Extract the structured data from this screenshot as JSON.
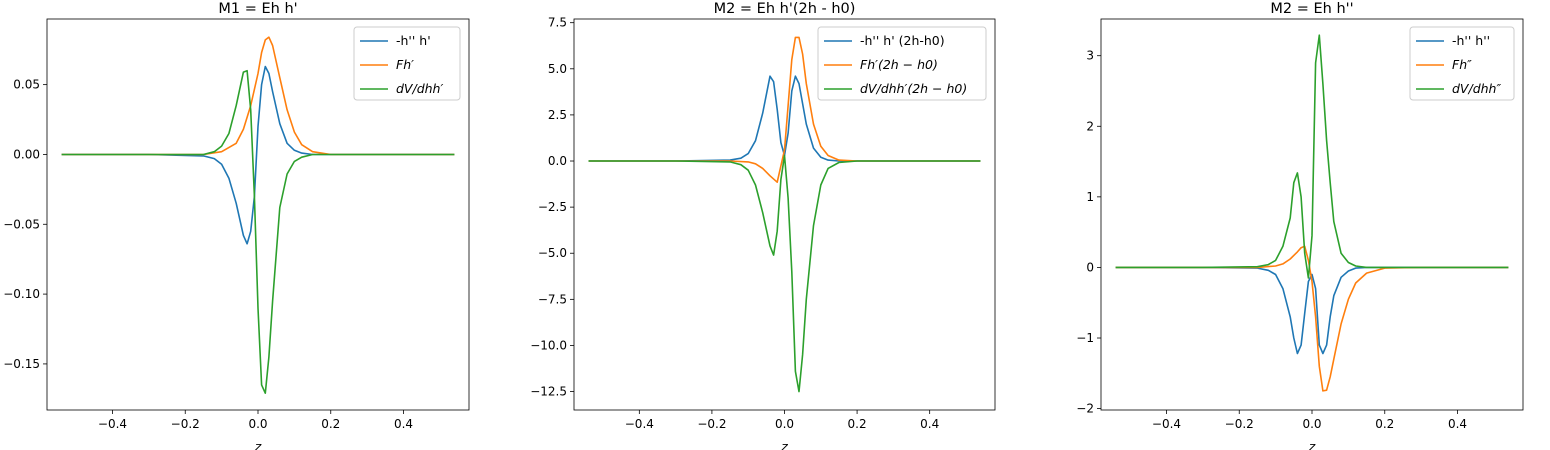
{
  "colors": {
    "series0": "#1f77b4",
    "series1": "#ff7f0e",
    "series2": "#2ca02c"
  },
  "chart_data": [
    {
      "type": "line",
      "title": "M1 = Eh h'",
      "xlabel": "z",
      "ylabel": "",
      "xlim": [
        -0.58,
        0.58
      ],
      "ylim": [
        -0.183,
        0.097
      ],
      "xticks": [
        -0.4,
        -0.2,
        0.0,
        0.2,
        0.4
      ],
      "xtick_labels": [
        "−0.4",
        "−0.2",
        "0.0",
        "0.2",
        "0.4"
      ],
      "yticks": [
        -0.15,
        -0.1,
        -0.05,
        0.0,
        0.05
      ],
      "ytick_labels": [
        "−0.15",
        "−0.10",
        "−0.05",
        "0.00",
        "0.05"
      ],
      "legend_position": "top-right",
      "series": [
        {
          "name": "-h'' h'",
          "color_key": "series0",
          "x": [
            -0.54,
            -0.3,
            -0.15,
            -0.12,
            -0.1,
            -0.08,
            -0.06,
            -0.04,
            -0.03,
            -0.02,
            -0.01,
            0.0,
            0.01,
            0.02,
            0.03,
            0.04,
            0.06,
            0.08,
            0.1,
            0.12,
            0.15,
            0.3,
            0.54
          ],
          "y": [
            0.0,
            0.0,
            -0.001,
            -0.003,
            -0.007,
            -0.017,
            -0.035,
            -0.058,
            -0.064,
            -0.055,
            -0.03,
            0.02,
            0.05,
            0.063,
            0.058,
            0.045,
            0.022,
            0.008,
            0.003,
            0.001,
            0.0,
            0.0,
            0.0
          ]
        },
        {
          "name": "Fh'",
          "color_key": "series1",
          "x": [
            -0.54,
            -0.3,
            -0.15,
            -0.1,
            -0.06,
            -0.04,
            -0.02,
            0.0,
            0.01,
            0.02,
            0.03,
            0.04,
            0.06,
            0.08,
            0.1,
            0.12,
            0.15,
            0.2,
            0.3,
            0.54
          ],
          "y": [
            0.0,
            0.0,
            0.0,
            0.002,
            0.008,
            0.018,
            0.035,
            0.058,
            0.073,
            0.082,
            0.084,
            0.078,
            0.055,
            0.032,
            0.016,
            0.007,
            0.002,
            0.0,
            0.0,
            0.0
          ]
        },
        {
          "name": "dV/dhh'",
          "color_key": "series2",
          "x": [
            -0.54,
            -0.3,
            -0.15,
            -0.12,
            -0.1,
            -0.08,
            -0.06,
            -0.04,
            -0.03,
            -0.02,
            -0.01,
            0.0,
            0.01,
            0.02,
            0.03,
            0.04,
            0.06,
            0.08,
            0.1,
            0.12,
            0.15,
            0.2,
            0.3,
            0.54
          ],
          "y": [
            0.0,
            0.0,
            0.0,
            0.002,
            0.006,
            0.015,
            0.035,
            0.059,
            0.06,
            0.032,
            -0.03,
            -0.11,
            -0.165,
            -0.171,
            -0.145,
            -0.105,
            -0.038,
            -0.014,
            -0.005,
            -0.002,
            0.0,
            0.0,
            0.0,
            0.0
          ]
        }
      ]
    },
    {
      "type": "line",
      "title": "M2 = Eh h'(2h - h0)",
      "xlabel": "z",
      "ylabel": "",
      "xlim": [
        -0.58,
        0.58
      ],
      "ylim": [
        -13.5,
        7.7
      ],
      "xticks": [
        -0.4,
        -0.2,
        0.0,
        0.2,
        0.4
      ],
      "xtick_labels": [
        "−0.4",
        "−0.2",
        "0.0",
        "0.2",
        "0.4"
      ],
      "yticks": [
        -12.5,
        -10.0,
        -7.5,
        -5.0,
        -2.5,
        0.0,
        2.5,
        5.0,
        7.5
      ],
      "ytick_labels": [
        "−12.5",
        "−10.0",
        "−7.5",
        "−5.0",
        "−2.5",
        "0.0",
        "2.5",
        "5.0",
        "7.5"
      ],
      "legend_position": "top-right",
      "series": [
        {
          "name": "-h'' h' (2h-h0)",
          "color_key": "series0",
          "x": [
            -0.54,
            -0.3,
            -0.15,
            -0.12,
            -0.1,
            -0.08,
            -0.06,
            -0.04,
            -0.03,
            -0.02,
            -0.01,
            0.0,
            0.01,
            0.02,
            0.03,
            0.04,
            0.06,
            0.08,
            0.1,
            0.12,
            0.15,
            0.3,
            0.54
          ],
          "y": [
            0.0,
            0.0,
            0.05,
            0.15,
            0.4,
            1.1,
            2.6,
            4.6,
            4.3,
            2.8,
            1.0,
            0.3,
            1.5,
            3.8,
            4.6,
            4.2,
            2.0,
            0.7,
            0.2,
            0.05,
            0.0,
            0.0,
            0.0
          ]
        },
        {
          "name": "Fh'(2h − h0)",
          "color_key": "series1",
          "x": [
            -0.54,
            -0.3,
            -0.15,
            -0.1,
            -0.08,
            -0.06,
            -0.04,
            -0.02,
            0.0,
            0.01,
            0.02,
            0.03,
            0.04,
            0.05,
            0.06,
            0.08,
            0.1,
            0.12,
            0.15,
            0.2,
            0.3,
            0.54
          ],
          "y": [
            0.0,
            0.0,
            0.0,
            -0.05,
            -0.15,
            -0.4,
            -0.8,
            -1.15,
            0.6,
            3.0,
            5.5,
            6.7,
            6.7,
            5.8,
            4.2,
            2.0,
            0.8,
            0.3,
            0.05,
            0.0,
            0.0,
            0.0
          ]
        },
        {
          "name": "dV/dhh'(2h − h0)",
          "color_key": "series2",
          "x": [
            -0.54,
            -0.3,
            -0.15,
            -0.12,
            -0.1,
            -0.08,
            -0.06,
            -0.04,
            -0.03,
            -0.02,
            -0.01,
            0.0,
            0.01,
            0.02,
            0.03,
            0.04,
            0.05,
            0.06,
            0.08,
            0.1,
            0.12,
            0.15,
            0.2,
            0.3,
            0.54
          ],
          "y": [
            0.0,
            0.0,
            -0.05,
            -0.2,
            -0.5,
            -1.3,
            -2.8,
            -4.6,
            -5.1,
            -3.8,
            -1.0,
            0.3,
            -2.0,
            -6.0,
            -11.4,
            -12.5,
            -10.5,
            -7.5,
            -3.5,
            -1.3,
            -0.4,
            -0.08,
            0.0,
            0.0,
            0.0
          ]
        }
      ]
    },
    {
      "type": "line",
      "title": "M2 = Eh h''",
      "xlabel": "z",
      "ylabel": "",
      "xlim": [
        -0.58,
        0.58
      ],
      "ylim": [
        -2.02,
        3.52
      ],
      "xticks": [
        -0.4,
        -0.2,
        0.0,
        0.2,
        0.4
      ],
      "xtick_labels": [
        "−0.4",
        "−0.2",
        "0.0",
        "0.2",
        "0.4"
      ],
      "yticks": [
        -2,
        -1,
        0,
        1,
        2,
        3
      ],
      "ytick_labels": [
        "−2",
        "−1",
        "0",
        "1",
        "2",
        "3"
      ],
      "legend_position": "top-right",
      "series": [
        {
          "name": "-h'' h''",
          "color_key": "series0",
          "x": [
            -0.54,
            -0.3,
            -0.15,
            -0.12,
            -0.1,
            -0.08,
            -0.06,
            -0.05,
            -0.04,
            -0.03,
            -0.02,
            -0.01,
            0.0,
            0.01,
            0.02,
            0.03,
            0.04,
            0.05,
            0.06,
            0.08,
            0.1,
            0.12,
            0.15,
            0.3,
            0.54
          ],
          "y": [
            0.0,
            0.0,
            -0.01,
            -0.04,
            -0.1,
            -0.3,
            -0.7,
            -1.0,
            -1.22,
            -1.1,
            -0.65,
            -0.2,
            -0.1,
            -0.3,
            -1.1,
            -1.22,
            -1.1,
            -0.7,
            -0.4,
            -0.14,
            -0.05,
            -0.01,
            0.0,
            0.0,
            0.0
          ]
        },
        {
          "name": "Fh''",
          "color_key": "series1",
          "x": [
            -0.54,
            -0.3,
            -0.15,
            -0.1,
            -0.08,
            -0.06,
            -0.04,
            -0.03,
            -0.02,
            -0.01,
            0.0,
            0.01,
            0.02,
            0.03,
            0.04,
            0.05,
            0.06,
            0.08,
            0.1,
            0.12,
            0.15,
            0.2,
            0.3,
            0.54
          ],
          "y": [
            0.0,
            0.0,
            0.0,
            0.02,
            0.05,
            0.12,
            0.22,
            0.28,
            0.3,
            0.1,
            -0.2,
            -0.7,
            -1.4,
            -1.75,
            -1.74,
            -1.55,
            -1.3,
            -0.8,
            -0.45,
            -0.22,
            -0.08,
            -0.01,
            0.0,
            0.0
          ]
        },
        {
          "name": "dV/dhh''",
          "color_key": "series2",
          "x": [
            -0.54,
            -0.3,
            -0.15,
            -0.12,
            -0.1,
            -0.08,
            -0.06,
            -0.05,
            -0.04,
            -0.03,
            -0.02,
            -0.01,
            0.0,
            0.01,
            0.02,
            0.03,
            0.04,
            0.05,
            0.06,
            0.08,
            0.1,
            0.12,
            0.15,
            0.2,
            0.3,
            0.54
          ],
          "y": [
            0.0,
            0.0,
            0.01,
            0.04,
            0.1,
            0.3,
            0.7,
            1.2,
            1.34,
            1.0,
            0.2,
            -0.15,
            0.45,
            2.9,
            3.29,
            2.6,
            1.8,
            1.2,
            0.65,
            0.2,
            0.07,
            0.02,
            0.0,
            0.0,
            0.0,
            0.0
          ]
        }
      ]
    }
  ]
}
